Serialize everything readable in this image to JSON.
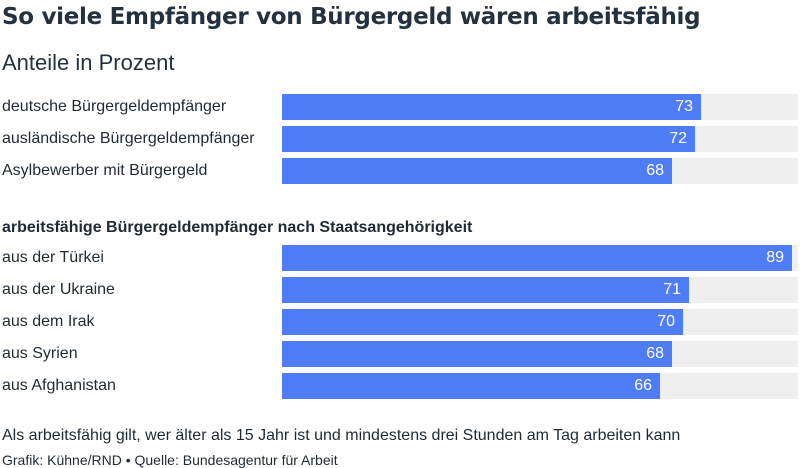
{
  "chart_data": {
    "type": "bar",
    "title": "So viele Empfänger von Bürgergeld wären arbeitsfähig",
    "subtitle": "Anteile in Prozent",
    "orientation": "horizontal",
    "xlim": [
      0,
      90
    ],
    "groups": [
      {
        "heading": "",
        "categories": [
          "deutsche Bürgergeldempfänger",
          "ausländische Bürgergeldempfänger",
          "Asylbewerber mit Bürgergeld"
        ],
        "values": [
          73,
          72,
          68
        ]
      },
      {
        "heading": "arbeitsfähige Bürgergeldempfänger nach Staatsangehörigkeit",
        "categories": [
          "aus der Türkei",
          "aus der Ukraine",
          "aus dem Irak",
          "aus Syrien",
          "aus Afghanistan"
        ],
        "values": [
          89,
          71,
          70,
          68,
          66
        ]
      }
    ],
    "colors": {
      "bar": "#4f7cf7",
      "track": "#efefef",
      "value_text": "#ffffff"
    }
  },
  "footer": {
    "note": "Als arbeitsfähig gilt, wer älter als 15 Jahr ist und mindestens drei Stunden am Tag arbeiten kann",
    "source": "Grafik: Kühne/RND • Quelle: Bundesagentur für Arbeit"
  }
}
